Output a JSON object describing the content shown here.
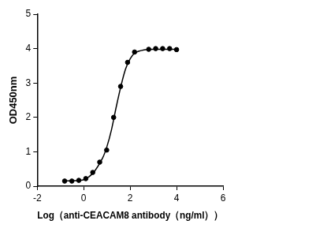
{
  "chart_data": {
    "type": "scatter",
    "x_label": "Log（anti-CEACAM8 antibody（ng/ml））",
    "y_label": "OD450nm",
    "xlim": [
      -2,
      6
    ],
    "xticks": [
      -2,
      0,
      2,
      4,
      6
    ],
    "ylim": [
      0,
      5
    ],
    "yticks": [
      0,
      1,
      2,
      3,
      4,
      5
    ],
    "grid": false,
    "series": [
      {
        "type": "scatter",
        "color": "#000000",
        "marker": "circle",
        "x": [
          -0.82,
          -0.51,
          -0.21,
          0.09,
          0.39,
          0.69,
          0.99,
          1.29,
          1.59,
          1.89,
          2.19,
          2.8,
          3.1,
          3.4,
          3.7,
          4.0
        ],
        "values": [
          0.15,
          0.15,
          0.17,
          0.22,
          0.4,
          0.7,
          1.05,
          2.0,
          2.9,
          3.6,
          3.9,
          3.98,
          4.0,
          4.0,
          4.0,
          3.97
        ]
      },
      {
        "type": "line",
        "color": "#000000",
        "marker": "none",
        "line_style": "solid",
        "x": [
          -0.82,
          -0.4,
          0,
          0.4,
          0.8,
          1.0,
          1.2,
          1.4,
          1.6,
          1.8,
          2.0,
          2.2,
          2.6,
          3.0,
          4.0
        ],
        "values": [
          0.15,
          0.16,
          0.19,
          0.38,
          0.8,
          1.15,
          1.65,
          2.3,
          2.9,
          3.4,
          3.7,
          3.87,
          3.96,
          3.98,
          3.98
        ]
      }
    ]
  }
}
